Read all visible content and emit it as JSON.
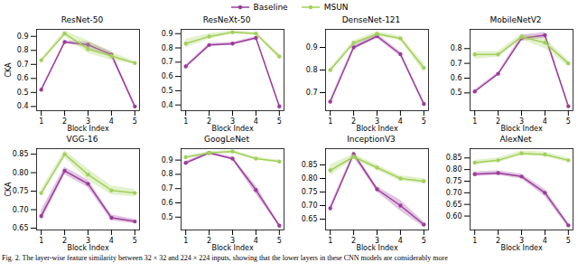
{
  "chart_data": [
    {
      "type": "line",
      "title": "ResNet-50",
      "x_label": "Block Index",
      "y_label": "CKA",
      "legend": "top",
      "grid": false,
      "x": [
        1,
        2,
        3,
        4,
        5
      ],
      "xlim": [
        0.8,
        5.2
      ],
      "xticks": [
        1,
        2,
        3,
        4,
        5
      ],
      "ylim": [
        0.37,
        0.95
      ],
      "yticks": [
        0.4,
        0.5,
        0.6,
        0.7,
        0.8,
        0.9
      ],
      "series": [
        {
          "name": "Baseline",
          "color": "#9c3d9c",
          "marker": "circle",
          "values": [
            0.52,
            0.86,
            0.84,
            0.77,
            0.4
          ],
          "lower": [
            0.51,
            0.85,
            0.82,
            0.75,
            0.39
          ],
          "upper": [
            0.53,
            0.87,
            0.86,
            0.79,
            0.41
          ]
        },
        {
          "name": "MSUN",
          "color": "#a3d05a",
          "marker": "circle",
          "values": [
            0.73,
            0.92,
            0.81,
            0.76,
            0.71
          ],
          "lower": [
            0.72,
            0.9,
            0.78,
            0.73,
            0.7
          ],
          "upper": [
            0.74,
            0.94,
            0.87,
            0.79,
            0.72
          ]
        }
      ]
    },
    {
      "type": "line",
      "title": "ResNeXt-50",
      "x_label": "Block Index",
      "grid": false,
      "x": [
        1,
        2,
        3,
        4,
        5
      ],
      "xlim": [
        0.8,
        5.2
      ],
      "xticks": [
        1,
        2,
        3,
        4,
        5
      ],
      "ylim": [
        0.36,
        0.93
      ],
      "yticks": [
        0.4,
        0.5,
        0.6,
        0.7,
        0.8,
        0.9
      ],
      "series": [
        {
          "name": "Baseline",
          "color": "#9c3d9c",
          "marker": "circle",
          "values": [
            0.67,
            0.82,
            0.83,
            0.87,
            0.39
          ],
          "lower": [
            0.66,
            0.81,
            0.82,
            0.86,
            0.38
          ],
          "upper": [
            0.68,
            0.83,
            0.84,
            0.88,
            0.4
          ]
        },
        {
          "name": "MSUN",
          "color": "#a3d05a",
          "marker": "circle",
          "values": [
            0.83,
            0.88,
            0.91,
            0.9,
            0.74
          ],
          "lower": [
            0.8,
            0.86,
            0.9,
            0.89,
            0.72
          ],
          "upper": [
            0.86,
            0.9,
            0.92,
            0.91,
            0.76
          ]
        }
      ]
    },
    {
      "type": "line",
      "title": "DenseNet-121",
      "x_label": "Block Index",
      "grid": false,
      "x": [
        1,
        2,
        3,
        4,
        5
      ],
      "xlim": [
        0.8,
        5.2
      ],
      "xticks": [
        1,
        2,
        3,
        4,
        5
      ],
      "ylim": [
        0.62,
        0.98
      ],
      "yticks": [
        0.7,
        0.8,
        0.9
      ],
      "series": [
        {
          "name": "Baseline",
          "color": "#9c3d9c",
          "marker": "circle",
          "values": [
            0.66,
            0.9,
            0.95,
            0.87,
            0.65
          ],
          "lower": [
            0.65,
            0.89,
            0.94,
            0.86,
            0.64
          ],
          "upper": [
            0.67,
            0.91,
            0.96,
            0.88,
            0.66
          ]
        },
        {
          "name": "MSUN",
          "color": "#a3d05a",
          "marker": "circle",
          "values": [
            0.8,
            0.92,
            0.96,
            0.94,
            0.81
          ],
          "lower": [
            0.79,
            0.91,
            0.95,
            0.93,
            0.79
          ],
          "upper": [
            0.81,
            0.93,
            0.97,
            0.95,
            0.83
          ]
        }
      ]
    },
    {
      "type": "line",
      "title": "MobileNetV2",
      "x_label": "Block Index",
      "grid": false,
      "x": [
        1,
        2,
        3,
        4,
        5
      ],
      "xlim": [
        0.8,
        5.2
      ],
      "xticks": [
        1,
        2,
        3,
        4,
        5
      ],
      "ylim": [
        0.38,
        0.93
      ],
      "yticks": [
        0.5,
        0.6,
        0.7,
        0.8
      ],
      "series": [
        {
          "name": "Baseline",
          "color": "#9c3d9c",
          "marker": "circle",
          "values": [
            0.51,
            0.63,
            0.87,
            0.89,
            0.41
          ],
          "lower": [
            0.5,
            0.62,
            0.85,
            0.87,
            0.4
          ],
          "upper": [
            0.52,
            0.64,
            0.89,
            0.91,
            0.42
          ]
        },
        {
          "name": "MSUN",
          "color": "#a3d05a",
          "marker": "circle",
          "values": [
            0.76,
            0.76,
            0.88,
            0.84,
            0.7
          ],
          "lower": [
            0.73,
            0.74,
            0.86,
            0.8,
            0.68
          ],
          "upper": [
            0.78,
            0.78,
            0.9,
            0.87,
            0.72
          ]
        }
      ]
    },
    {
      "type": "line",
      "title": "VGG-16",
      "x_label": "Block Index",
      "y_label": "CKA",
      "grid": false,
      "x": [
        1,
        2,
        3,
        4,
        5
      ],
      "xlim": [
        0.8,
        5.2
      ],
      "xticks": [
        1,
        2,
        3,
        4,
        5
      ],
      "ylim": [
        0.645,
        0.865
      ],
      "yticks": [
        {
          "value": 0.65,
          "label": "0.65"
        },
        {
          "value": 0.7,
          "label": "0.70"
        },
        {
          "value": 0.75,
          "label": "0.75"
        },
        {
          "value": 0.8,
          "label": "0.80"
        },
        {
          "value": 0.85,
          "label": "0.85"
        }
      ],
      "series": [
        {
          "name": "Baseline",
          "color": "#9c3d9c",
          "marker": "circle",
          "values": [
            0.683,
            0.805,
            0.77,
            0.678,
            0.668
          ],
          "lower": [
            0.668,
            0.795,
            0.76,
            0.67,
            0.662
          ],
          "upper": [
            0.698,
            0.815,
            0.78,
            0.686,
            0.674
          ]
        },
        {
          "name": "MSUN",
          "color": "#a3d05a",
          "marker": "circle",
          "values": [
            0.745,
            0.85,
            0.795,
            0.752,
            0.745
          ],
          "lower": [
            0.735,
            0.84,
            0.78,
            0.74,
            0.735
          ],
          "upper": [
            0.755,
            0.86,
            0.81,
            0.764,
            0.755
          ]
        }
      ]
    },
    {
      "type": "line",
      "title": "GoogLeNet",
      "x_label": "Block Index",
      "grid": false,
      "x": [
        1,
        2,
        3,
        4,
        5
      ],
      "xlim": [
        0.8,
        5.2
      ],
      "xticks": [
        1,
        2,
        3,
        4,
        5
      ],
      "ylim": [
        0.41,
        0.98
      ],
      "yticks": [
        0.5,
        0.6,
        0.7,
        0.8,
        0.9
      ],
      "series": [
        {
          "name": "Baseline",
          "color": "#9c3d9c",
          "marker": "circle",
          "values": [
            0.88,
            0.95,
            0.91,
            0.69,
            0.44
          ],
          "lower": [
            0.87,
            0.94,
            0.9,
            0.66,
            0.43
          ],
          "upper": [
            0.89,
            0.96,
            0.92,
            0.72,
            0.45
          ]
        },
        {
          "name": "MSUN",
          "color": "#a3d05a",
          "marker": "circle",
          "values": [
            0.92,
            0.95,
            0.96,
            0.91,
            0.89
          ],
          "lower": [
            0.91,
            0.94,
            0.95,
            0.9,
            0.88
          ],
          "upper": [
            0.93,
            0.96,
            0.97,
            0.92,
            0.9
          ]
        }
      ]
    },
    {
      "type": "line",
      "title": "InceptionV3",
      "x_label": "Block Index",
      "grid": false,
      "x": [
        1,
        2,
        3,
        4,
        5
      ],
      "xlim": [
        0.8,
        5.2
      ],
      "xticks": [
        1,
        2,
        3,
        4,
        5
      ],
      "ylim": [
        0.61,
        0.91
      ],
      "yticks": [
        {
          "value": 0.65,
          "label": "0.65"
        },
        {
          "value": 0.7,
          "label": "0.70"
        },
        {
          "value": 0.75,
          "label": "0.75"
        },
        {
          "value": 0.8,
          "label": "0.80"
        },
        {
          "value": 0.85,
          "label": "0.85"
        }
      ],
      "series": [
        {
          "name": "Baseline",
          "color": "#9c3d9c",
          "marker": "circle",
          "values": [
            0.69,
            0.89,
            0.76,
            0.7,
            0.63
          ],
          "lower": [
            0.68,
            0.88,
            0.75,
            0.68,
            0.62
          ],
          "upper": [
            0.7,
            0.9,
            0.77,
            0.72,
            0.64
          ]
        },
        {
          "name": "MSUN",
          "color": "#a3d05a",
          "marker": "circle",
          "values": [
            0.83,
            0.88,
            0.84,
            0.8,
            0.79
          ],
          "lower": [
            0.81,
            0.87,
            0.83,
            0.79,
            0.78
          ],
          "upper": [
            0.85,
            0.89,
            0.85,
            0.81,
            0.8
          ]
        }
      ]
    },
    {
      "type": "line",
      "title": "AlexNet",
      "x_label": "Block Index",
      "grid": false,
      "x": [
        1,
        2,
        3,
        4,
        5
      ],
      "xlim": [
        0.8,
        5.2
      ],
      "xticks": [
        1,
        2,
        3,
        4,
        5
      ],
      "ylim": [
        0.54,
        0.89
      ],
      "yticks": [
        {
          "value": 0.6,
          "label": "0.60"
        },
        {
          "value": 0.65,
          "label": "0.65"
        },
        {
          "value": 0.7,
          "label": "0.70"
        },
        {
          "value": 0.75,
          "label": "0.75"
        },
        {
          "value": 0.8,
          "label": "0.80"
        },
        {
          "value": 0.85,
          "label": "0.85"
        }
      ],
      "series": [
        {
          "name": "Baseline",
          "color": "#9c3d9c",
          "marker": "circle",
          "values": [
            0.78,
            0.785,
            0.77,
            0.7,
            0.56
          ],
          "lower": [
            0.77,
            0.775,
            0.76,
            0.685,
            0.55
          ],
          "upper": [
            0.79,
            0.795,
            0.78,
            0.715,
            0.57
          ]
        },
        {
          "name": "MSUN",
          "color": "#a3d05a",
          "marker": "circle",
          "values": [
            0.83,
            0.84,
            0.87,
            0.865,
            0.84
          ],
          "lower": [
            0.82,
            0.83,
            0.86,
            0.855,
            0.83
          ],
          "upper": [
            0.84,
            0.85,
            0.88,
            0.875,
            0.85
          ]
        }
      ]
    }
  ],
  "caption": "Fig. 2.   The layer-wise feature similarity between 32 × 32 and 224 × 224 inputs, showing that the lower layers in these CNN models are considerably more"
}
